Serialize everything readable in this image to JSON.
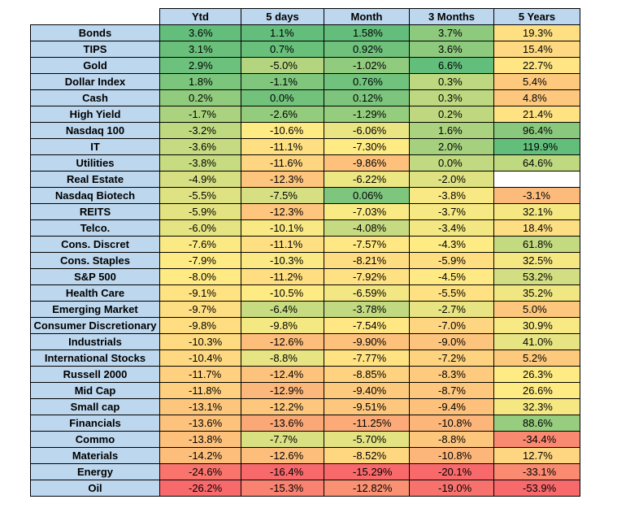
{
  "chart_data": {
    "type": "table",
    "columns": [
      "Ytd",
      "5 days",
      "Month",
      "3 Months",
      "5 Years"
    ],
    "rows": [
      {
        "label": "Bonds",
        "values": [
          "3.6%",
          "1.1%",
          "1.58%",
          "3.7%",
          "19.3%"
        ]
      },
      {
        "label": "TIPS",
        "values": [
          "3.1%",
          "0.7%",
          "0.92%",
          "3.6%",
          "15.4%"
        ]
      },
      {
        "label": "Gold",
        "values": [
          "2.9%",
          "-5.0%",
          "-1.02%",
          "6.6%",
          "22.7%"
        ]
      },
      {
        "label": "Dollar Index",
        "values": [
          "1.8%",
          "-1.1%",
          "0.76%",
          "0.3%",
          "5.4%"
        ]
      },
      {
        "label": "Cash",
        "values": [
          "0.2%",
          "0.0%",
          "0.12%",
          "0.3%",
          "4.8%"
        ]
      },
      {
        "label": "High Yield",
        "values": [
          "-1.7%",
          "-2.6%",
          "-1.29%",
          "0.2%",
          "21.4%"
        ]
      },
      {
        "label": "Nasdaq 100",
        "values": [
          "-3.2%",
          "-10.6%",
          "-6.06%",
          "1.6%",
          "96.4%"
        ]
      },
      {
        "label": "IT",
        "values": [
          "-3.6%",
          "-11.1%",
          "-7.30%",
          "2.0%",
          "119.9%"
        ]
      },
      {
        "label": "Utilities",
        "values": [
          "-3.8%",
          "-11.6%",
          "-9.86%",
          "0.0%",
          "64.6%"
        ]
      },
      {
        "label": "Real Estate",
        "values": [
          "-4.9%",
          "-12.3%",
          "-6.22%",
          "-2.0%",
          ""
        ]
      },
      {
        "label": "Nasdaq Biotech",
        "values": [
          "-5.5%",
          "-7.5%",
          "0.06%",
          "-3.8%",
          "-3.1%"
        ]
      },
      {
        "label": "REITS",
        "values": [
          "-5.9%",
          "-12.3%",
          "-7.03%",
          "-3.7%",
          "32.1%"
        ]
      },
      {
        "label": "Telco.",
        "values": [
          "-6.0%",
          "-10.1%",
          "-4.08%",
          "-3.4%",
          "18.4%"
        ]
      },
      {
        "label": "Cons. Discret",
        "values": [
          "-7.6%",
          "-11.1%",
          "-7.57%",
          "-4.3%",
          "61.8%"
        ]
      },
      {
        "label": "Cons. Staples",
        "values": [
          "-7.9%",
          "-10.3%",
          "-8.21%",
          "-5.9%",
          "32.5%"
        ]
      },
      {
        "label": "S&P 500",
        "values": [
          "-8.0%",
          "-11.2%",
          "-7.92%",
          "-4.5%",
          "53.2%"
        ]
      },
      {
        "label": "Health Care",
        "values": [
          "-9.1%",
          "-10.5%",
          "-6.59%",
          "-5.5%",
          "35.2%"
        ]
      },
      {
        "label": "Emerging Market",
        "values": [
          "-9.7%",
          "-6.4%",
          "-3.78%",
          "-2.7%",
          "5.0%"
        ]
      },
      {
        "label": "Consumer Discretionary",
        "values": [
          "-9.8%",
          "-9.8%",
          "-7.54%",
          "-7.0%",
          "30.9%"
        ]
      },
      {
        "label": "Industrials",
        "values": [
          "-10.3%",
          "-12.6%",
          "-9.90%",
          "-9.0%",
          "41.0%"
        ]
      },
      {
        "label": "International Stocks",
        "values": [
          "-10.4%",
          "-8.8%",
          "-7.77%",
          "-7.2%",
          "5.2%"
        ]
      },
      {
        "label": "Russell 2000",
        "values": [
          "-11.7%",
          "-12.4%",
          "-8.85%",
          "-8.3%",
          "26.3%"
        ]
      },
      {
        "label": "Mid Cap",
        "values": [
          "-11.8%",
          "-12.9%",
          "-9.40%",
          "-8.7%",
          "26.6%"
        ]
      },
      {
        "label": "Small cap",
        "values": [
          "-13.1%",
          "-12.2%",
          "-9.51%",
          "-9.4%",
          "32.3%"
        ]
      },
      {
        "label": "Financials",
        "values": [
          "-13.6%",
          "-13.6%",
          "-11.25%",
          "-10.8%",
          "88.6%"
        ]
      },
      {
        "label": "Commo",
        "values": [
          "-13.8%",
          "-7.7%",
          "-5.70%",
          "-8.8%",
          "-34.4%"
        ]
      },
      {
        "label": "Materials",
        "values": [
          "-14.2%",
          "-12.6%",
          "-8.52%",
          "-10.8%",
          "12.7%"
        ]
      },
      {
        "label": "Energy",
        "values": [
          "-24.6%",
          "-16.4%",
          "-15.29%",
          "-20.1%",
          "-33.1%"
        ]
      },
      {
        "label": "Oil",
        "values": [
          "-26.2%",
          "-15.3%",
          "-12.82%",
          "-19.0%",
          "-53.9%"
        ]
      }
    ],
    "header_color": "#bdd7ee",
    "color_scale": {
      "high": "#63be7b",
      "mid": "#ffeb84",
      "low": "#f8696b"
    }
  }
}
